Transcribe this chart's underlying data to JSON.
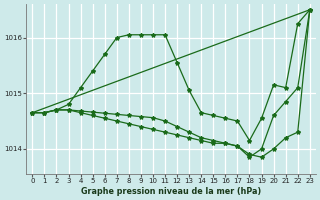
{
  "title": "Graphe pression niveau de la mer (hPa)",
  "bg_color": "#ceeaea",
  "grid_color": "#ffffff",
  "line_color": "#1a6b1a",
  "xlim": [
    -0.5,
    23.5
  ],
  "ylim": [
    1013.55,
    1016.6
  ],
  "xticks": [
    0,
    1,
    2,
    3,
    4,
    5,
    6,
    7,
    8,
    9,
    10,
    11,
    12,
    13,
    14,
    15,
    16,
    17,
    18,
    19,
    20,
    21,
    22,
    23
  ],
  "yticks": [
    1014,
    1015,
    1016
  ],
  "series": [
    {
      "x": [
        0,
        1,
        2,
        3,
        4,
        5,
        6,
        7,
        8,
        9,
        10,
        11,
        12,
        13,
        14,
        15,
        16,
        17,
        18,
        19,
        20,
        21,
        22,
        23
      ],
      "y": [
        1014.65,
        1014.65,
        1014.7,
        1014.8,
        1015.1,
        1015.4,
        1015.7,
        1016.0,
        1016.05,
        1016.05,
        1016.05,
        1016.05,
        1015.55,
        1015.05,
        1014.65,
        1014.6,
        1014.55,
        1014.5,
        1014.15,
        1014.55,
        1015.15,
        1015.1,
        1016.25,
        1016.5
      ]
    },
    {
      "x": [
        0,
        23
      ],
      "y": [
        1014.65,
        1016.5
      ]
    },
    {
      "x": [
        0,
        1,
        2,
        3,
        4,
        5,
        6,
        7,
        8,
        9,
        10,
        11,
        12,
        13,
        14,
        15,
        16,
        17,
        18,
        19,
        20,
        21,
        22,
        23
      ],
      "y": [
        1014.65,
        1014.65,
        1014.7,
        1014.7,
        1014.65,
        1014.6,
        1014.55,
        1014.5,
        1014.45,
        1014.4,
        1014.35,
        1014.3,
        1014.25,
        1014.2,
        1014.15,
        1014.1,
        1014.1,
        1014.05,
        1013.9,
        1013.85,
        1014.0,
        1014.2,
        1014.3,
        1016.5
      ]
    },
    {
      "x": [
        0,
        1,
        2,
        3,
        4,
        5,
        6,
        7,
        8,
        9,
        10,
        11,
        12,
        13,
        14,
        15,
        16,
        17,
        18,
        19,
        20,
        21,
        22,
        23
      ],
      "y": [
        1014.65,
        1014.65,
        1014.7,
        1014.7,
        1014.68,
        1014.66,
        1014.64,
        1014.62,
        1014.6,
        1014.58,
        1014.56,
        1014.5,
        1014.4,
        1014.3,
        1014.2,
        1014.15,
        1014.1,
        1014.05,
        1013.85,
        1014.0,
        1014.6,
        1014.85,
        1015.1,
        1016.5
      ]
    }
  ]
}
